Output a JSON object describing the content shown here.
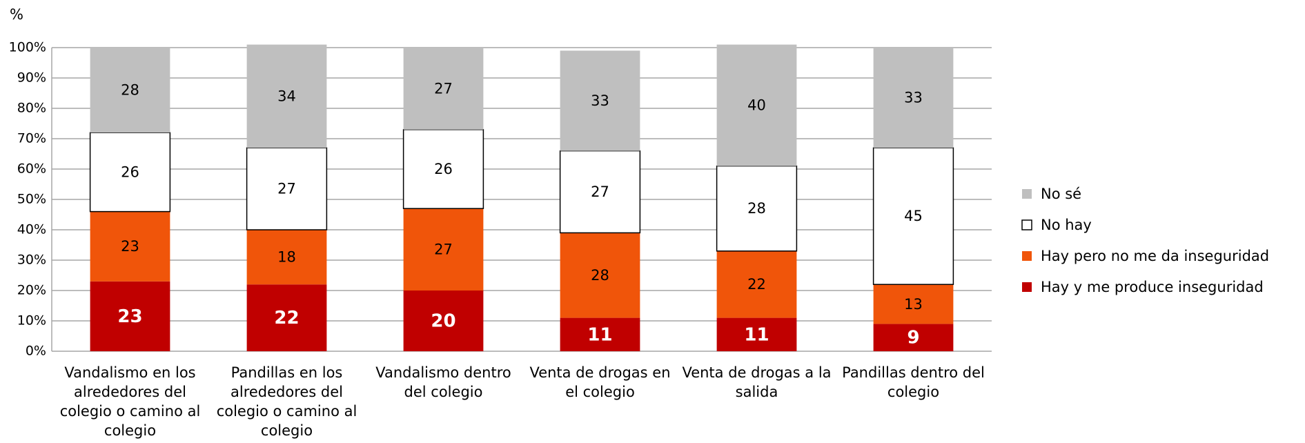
{
  "chart_data": {
    "type": "stacked_bar",
    "ylabel": "%",
    "categories": [
      "Vandalismo en los alrededores del colegio o camino al colegio",
      "Pandillas en los alrededores del colegio o camino al colegio",
      "Vandalismo dentro del colegio",
      "Venta de drogas en el colegio",
      "Venta de drogas a la salida",
      "Pandillas dentro del colegio"
    ],
    "series": [
      {
        "name": "Hay y me produce inseguridad",
        "color": "#c00000",
        "values": [
          23,
          22,
          20,
          11,
          11,
          9
        ]
      },
      {
        "name": "Hay pero no me da inseguridad",
        "color": "#f0550a",
        "values": [
          23,
          18,
          27,
          28,
          22,
          13
        ]
      },
      {
        "name": "No hay",
        "color": "#ffffff",
        "values": [
          26,
          27,
          26,
          27,
          28,
          45
        ]
      },
      {
        "name": "No sé",
        "color": "#bfbfbf",
        "values": [
          28,
          34,
          27,
          33,
          40,
          33
        ]
      }
    ],
    "ylim": [
      0,
      100
    ],
    "yticks": [
      {
        "value": 0,
        "label": "0%"
      },
      {
        "value": 10,
        "label": "10%"
      },
      {
        "value": 20,
        "label": "20%"
      },
      {
        "value": 30,
        "label": "30%"
      },
      {
        "value": 40,
        "label": "40%"
      },
      {
        "value": 50,
        "label": "50%"
      },
      {
        "value": 60,
        "label": "60%"
      },
      {
        "value": 70,
        "label": "70%"
      },
      {
        "value": 80,
        "label": "80%"
      },
      {
        "value": 90,
        "label": "90%"
      },
      {
        "value": 100,
        "label": "100%"
      }
    ],
    "grid": true
  }
}
